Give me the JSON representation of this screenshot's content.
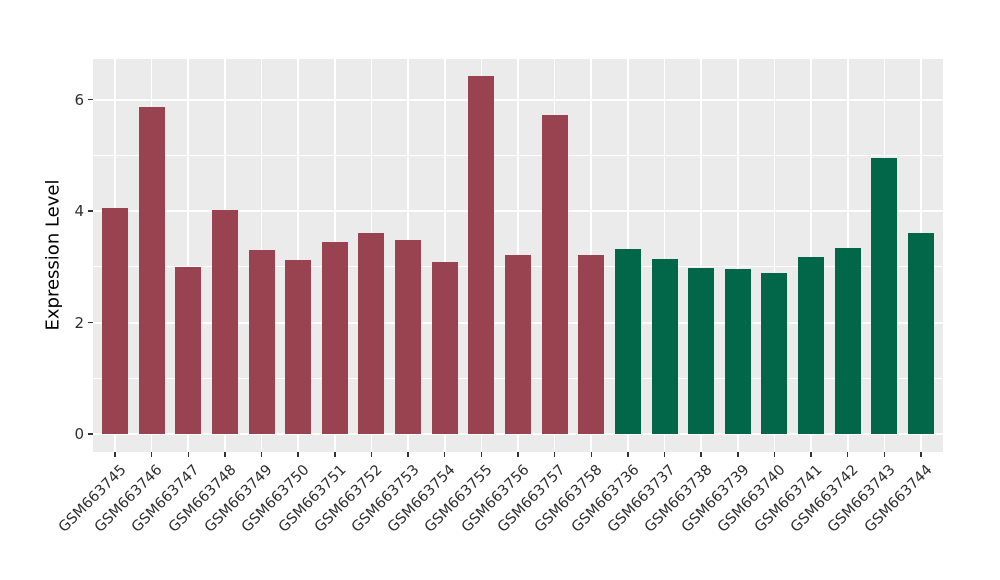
{
  "figure": {
    "background": "#ffffff",
    "panel_background": "#ebebeb",
    "gridline_color": "#ffffff",
    "tick_mark_color": "#333333",
    "axis_text_color": "#2e2e2e",
    "axis_title_color": "#000000"
  },
  "chart_data": {
    "type": "bar",
    "title": "",
    "xlabel": "",
    "ylabel": "Expression Level",
    "categories": [
      "GSM663745",
      "GSM663746",
      "GSM663747",
      "GSM663748",
      "GSM663749",
      "GSM663750",
      "GSM663751",
      "GSM663752",
      "GSM663753",
      "GSM663754",
      "GSM663755",
      "GSM663756",
      "GSM663757",
      "GSM663758",
      "GSM663736",
      "GSM663737",
      "GSM663738",
      "GSM663739",
      "GSM663740",
      "GSM663741",
      "GSM663742",
      "GSM663743",
      "GSM663744"
    ],
    "values": [
      4.06,
      5.86,
      2.99,
      4.03,
      3.31,
      3.13,
      3.44,
      3.61,
      3.49,
      3.09,
      6.42,
      3.22,
      5.72,
      3.22,
      3.33,
      3.15,
      2.98,
      2.96,
      2.9,
      3.17,
      3.34,
      4.96,
      3.6
    ],
    "bar_colors": [
      "#9a4350",
      "#9a4350",
      "#9a4350",
      "#9a4350",
      "#9a4350",
      "#9a4350",
      "#9a4350",
      "#9a4350",
      "#9a4350",
      "#9a4350",
      "#9a4350",
      "#9a4350",
      "#9a4350",
      "#9a4350",
      "#016748",
      "#016748",
      "#016748",
      "#016748",
      "#016748",
      "#016748",
      "#016748",
      "#016748",
      "#016748"
    ],
    "color_groups": [
      {
        "color": "#9a4350",
        "categories_from": "GSM663745",
        "categories_to": "GSM663758"
      },
      {
        "color": "#016748",
        "categories_from": "GSM663736",
        "categories_to": "GSM663744"
      }
    ],
    "yticks": [
      0,
      2,
      4,
      6
    ],
    "minor_yticks": [
      1,
      3,
      5
    ],
    "ylim": [
      -0.32,
      6.73
    ],
    "grid": true,
    "legend_position": "none"
  }
}
